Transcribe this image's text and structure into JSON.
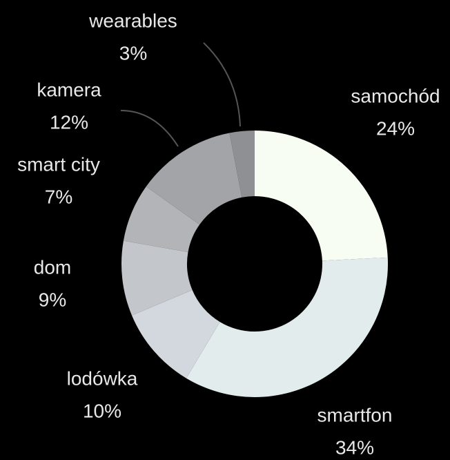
{
  "chart_data": {
    "type": "donut",
    "categories": [
      "samochód",
      "smartfon",
      "lodówka",
      "dom",
      "smart city",
      "kamera",
      "wearables"
    ],
    "values": [
      24,
      34,
      10,
      9,
      7,
      12,
      3
    ],
    "value_labels": [
      "24%",
      "34%",
      "10%",
      "9%",
      "7%",
      "12%",
      "3%"
    ],
    "colors": [
      "#f8fdf3",
      "#e2ecec",
      "#d3d8de",
      "#c3c6ca",
      "#b2b4b8",
      "#a3a4a8",
      "#8f9093"
    ]
  }
}
